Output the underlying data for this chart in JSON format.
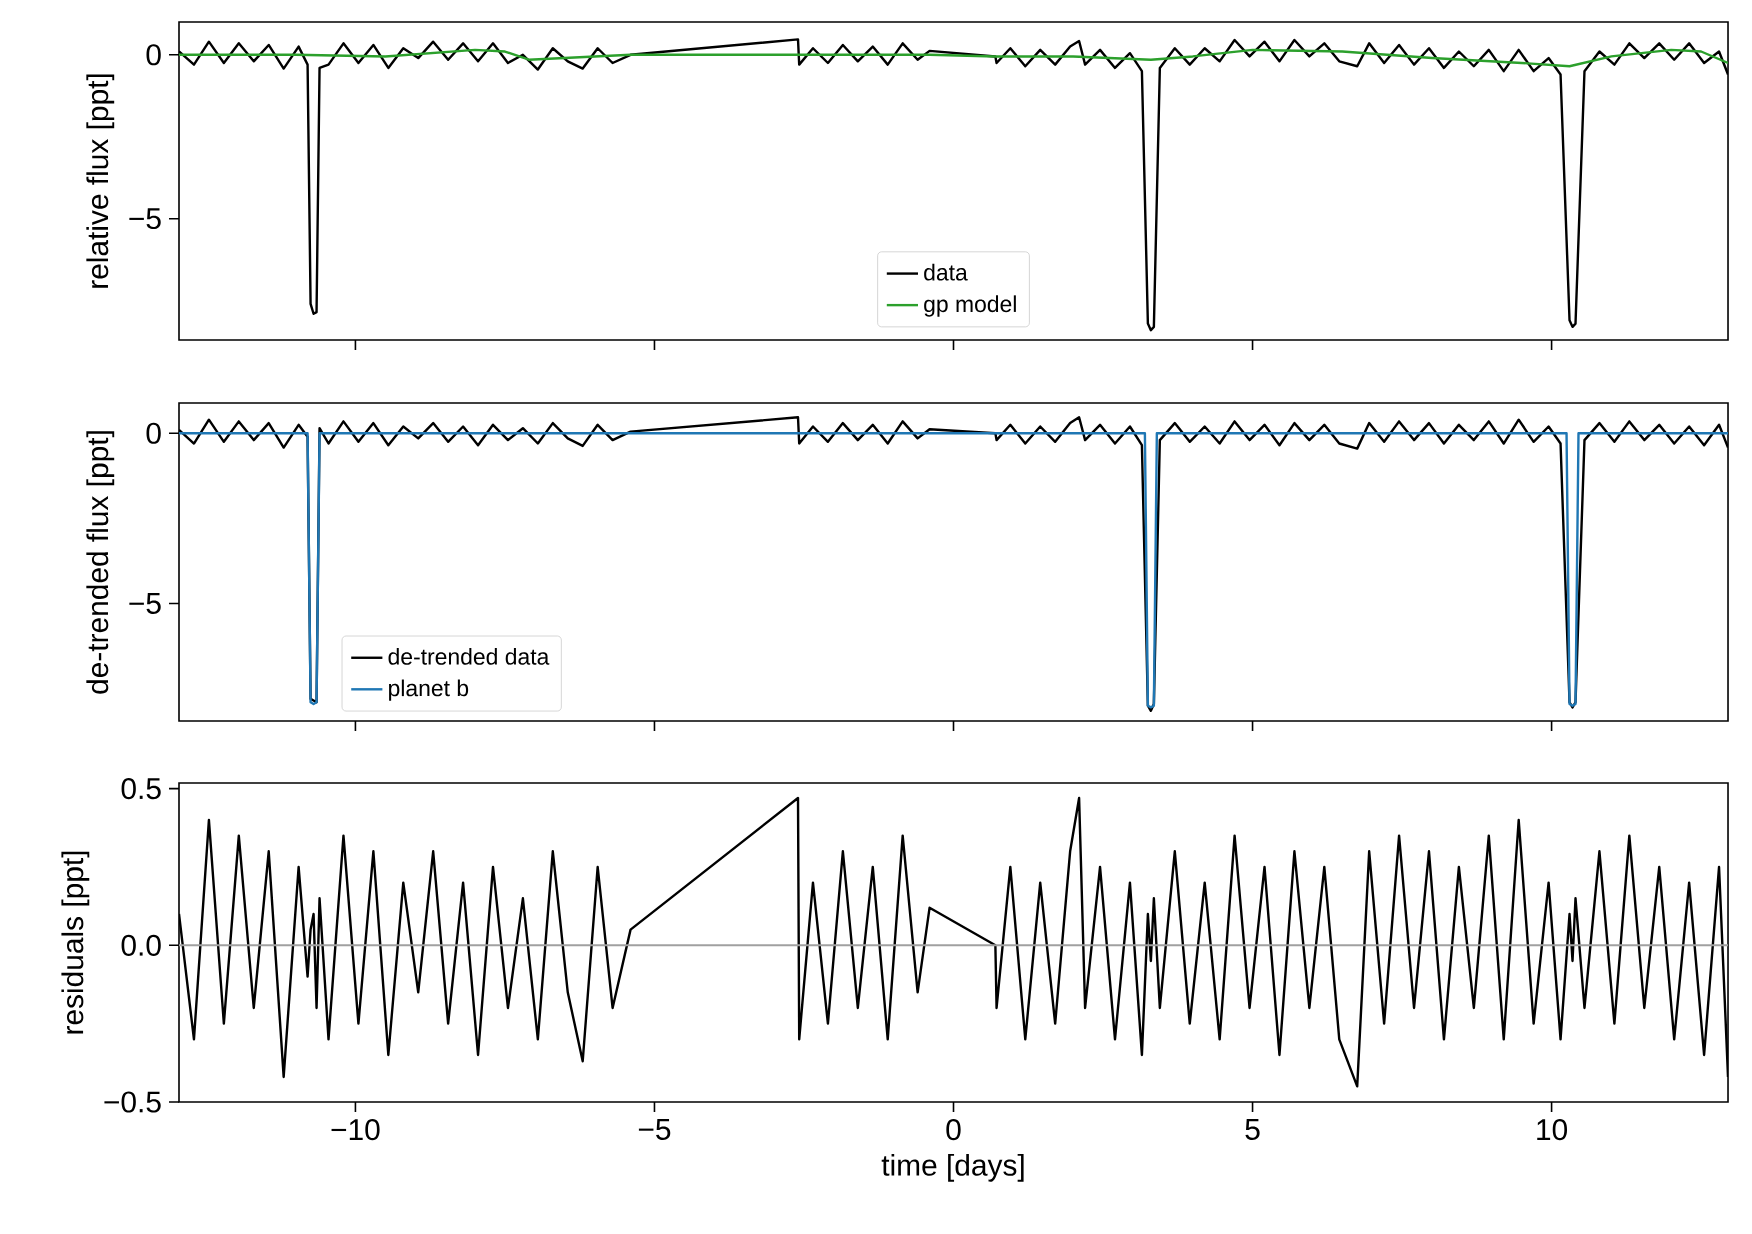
{
  "chart_data": [
    {
      "type": "line",
      "ylabel": "relative flux [ppt]",
      "xlim": [
        -12.95,
        12.95
      ],
      "ylim": [
        -8.7,
        1.0
      ],
      "xticks": [
        {
          "value": -10,
          "label": null
        },
        {
          "value": -5,
          "label": null
        },
        {
          "value": 0,
          "label": null
        },
        {
          "value": 5,
          "label": null
        },
        {
          "value": 10,
          "label": null
        }
      ],
      "yticks": [
        {
          "value": -5,
          "label": "−5"
        },
        {
          "value": 0,
          "label": "0"
        }
      ],
      "tick_labels": "y",
      "legend": "bottom",
      "series": [
        {
          "name": "data",
          "color": "#000000",
          "x": [
            -12.95,
            -12.7,
            -12.45,
            -12.2,
            -11.95,
            -11.7,
            -11.45,
            -11.2,
            -10.95,
            -10.8,
            -10.75,
            -10.7,
            -10.65,
            -10.6,
            -10.45,
            -10.2,
            -9.95,
            -9.7,
            -9.45,
            -9.2,
            -8.95,
            -8.7,
            -8.45,
            -8.2,
            -7.95,
            -7.7,
            -7.45,
            -7.2,
            -6.95,
            -6.7,
            -6.45,
            -6.2,
            -5.95,
            -5.7,
            -5.4,
            -2.6,
            -2.58,
            -2.35,
            -2.1,
            -1.85,
            -1.6,
            -1.35,
            -1.1,
            -0.85,
            -0.6,
            -0.4,
            0.7,
            0.72,
            0.95,
            1.2,
            1.45,
            1.7,
            1.95,
            2.1,
            2.2,
            2.45,
            2.7,
            2.95,
            3.15,
            3.25,
            3.3,
            3.35,
            3.45,
            3.7,
            3.95,
            4.2,
            4.45,
            4.7,
            4.95,
            5.2,
            5.45,
            5.7,
            5.95,
            6.2,
            6.45,
            6.75,
            6.95,
            7.2,
            7.45,
            7.7,
            7.95,
            8.2,
            8.45,
            8.7,
            8.95,
            9.2,
            9.45,
            9.7,
            9.95,
            10.15,
            10.3,
            10.35,
            10.4,
            10.55,
            10.8,
            11.05,
            11.3,
            11.55,
            11.8,
            12.05,
            12.3,
            12.55,
            12.8,
            12.95
          ],
          "values": [
            0.1,
            -0.3,
            0.4,
            -0.25,
            0.35,
            -0.2,
            0.3,
            -0.42,
            0.25,
            -0.3,
            -7.6,
            -7.9,
            -7.85,
            -0.4,
            -0.3,
            0.35,
            -0.25,
            0.3,
            -0.4,
            0.2,
            -0.1,
            0.4,
            -0.15,
            0.35,
            -0.2,
            0.35,
            -0.25,
            0.0,
            -0.45,
            0.2,
            -0.2,
            -0.42,
            0.2,
            -0.25,
            0.0,
            0.47,
            -0.3,
            0.2,
            -0.25,
            0.3,
            -0.2,
            0.25,
            -0.3,
            0.35,
            -0.15,
            0.12,
            -0.05,
            -0.25,
            0.2,
            -0.35,
            0.15,
            -0.3,
            0.25,
            0.42,
            -0.3,
            0.15,
            -0.4,
            0.05,
            -0.5,
            -8.2,
            -8.4,
            -8.3,
            -0.4,
            0.2,
            -0.3,
            0.2,
            -0.2,
            0.45,
            -0.05,
            0.4,
            -0.2,
            0.45,
            -0.05,
            0.35,
            -0.2,
            -0.35,
            0.35,
            -0.25,
            0.3,
            -0.3,
            0.2,
            -0.4,
            0.1,
            -0.35,
            0.15,
            -0.5,
            0.15,
            -0.5,
            -0.1,
            -0.6,
            -8.1,
            -8.3,
            -8.2,
            -0.5,
            0.1,
            -0.3,
            0.35,
            -0.1,
            0.35,
            -0.15,
            0.35,
            -0.25,
            0.1,
            -0.6
          ]
        },
        {
          "name": "gp model",
          "color": "#2ca02c",
          "x": [
            -12.95,
            -11,
            -9.5,
            -8,
            -7.5,
            -7.1,
            -6,
            -5.4,
            -2.6,
            -0.4,
            0.7,
            2,
            3.3,
            4,
            5,
            6.5,
            8,
            9.5,
            10.3,
            11,
            12,
            12.5,
            12.95
          ],
          "values": [
            0.0,
            0.0,
            -0.05,
            0.15,
            0.1,
            -0.15,
            -0.05,
            0.0,
            0.0,
            0.0,
            -0.05,
            -0.05,
            -0.15,
            -0.05,
            0.15,
            0.1,
            -0.1,
            -0.25,
            -0.35,
            -0.05,
            0.15,
            0.1,
            -0.25
          ]
        }
      ]
    },
    {
      "type": "line",
      "ylabel": "de-trended flux [ppt]",
      "xlim": [
        -12.95,
        12.95
      ],
      "ylim": [
        -8.45,
        0.89
      ],
      "xticks": [
        {
          "value": -10,
          "label": null
        },
        {
          "value": -5,
          "label": null
        },
        {
          "value": 0,
          "label": null
        },
        {
          "value": 5,
          "label": null
        },
        {
          "value": 10,
          "label": null
        }
      ],
      "yticks": [
        {
          "value": -5,
          "label": "−5"
        },
        {
          "value": 0,
          "label": "0"
        }
      ],
      "tick_labels": "y",
      "legend": "bottom left",
      "series": [
        {
          "name": "de-trended data",
          "color": "#000000",
          "x": [
            -12.95,
            -12.7,
            -12.45,
            -12.2,
            -11.95,
            -11.7,
            -11.45,
            -11.2,
            -10.95,
            -10.8,
            -10.75,
            -10.7,
            -10.65,
            -10.6,
            -10.45,
            -10.2,
            -9.95,
            -9.7,
            -9.45,
            -9.2,
            -8.95,
            -8.7,
            -8.45,
            -8.2,
            -7.95,
            -7.7,
            -7.45,
            -7.2,
            -6.95,
            -6.7,
            -6.45,
            -6.2,
            -5.95,
            -5.7,
            -5.4,
            -2.6,
            -2.58,
            -2.35,
            -2.1,
            -1.85,
            -1.6,
            -1.35,
            -1.1,
            -0.85,
            -0.6,
            -0.4,
            0.7,
            0.72,
            0.95,
            1.2,
            1.45,
            1.7,
            1.95,
            2.1,
            2.2,
            2.45,
            2.7,
            2.95,
            3.15,
            3.25,
            3.3,
            3.35,
            3.45,
            3.7,
            3.95,
            4.2,
            4.45,
            4.7,
            4.95,
            5.2,
            5.45,
            5.7,
            5.95,
            6.2,
            6.45,
            6.75,
            6.95,
            7.2,
            7.45,
            7.7,
            7.95,
            8.2,
            8.45,
            8.7,
            8.95,
            9.2,
            9.45,
            9.7,
            9.95,
            10.15,
            10.3,
            10.35,
            10.4,
            10.55,
            10.8,
            11.05,
            11.3,
            11.55,
            11.8,
            12.05,
            12.3,
            12.55,
            12.8,
            12.95
          ],
          "values": [
            0.1,
            -0.3,
            0.4,
            -0.25,
            0.35,
            -0.2,
            0.3,
            -0.42,
            0.25,
            -0.1,
            -7.8,
            -7.85,
            -7.9,
            0.15,
            -0.3,
            0.35,
            -0.25,
            0.3,
            -0.35,
            0.2,
            -0.15,
            0.3,
            -0.25,
            0.2,
            -0.35,
            0.25,
            -0.2,
            0.15,
            -0.3,
            0.3,
            -0.15,
            -0.37,
            0.25,
            -0.2,
            0.05,
            0.47,
            -0.3,
            0.2,
            -0.25,
            0.3,
            -0.2,
            0.25,
            -0.3,
            0.35,
            -0.15,
            0.12,
            0.0,
            -0.2,
            0.25,
            -0.3,
            0.2,
            -0.25,
            0.3,
            0.47,
            -0.2,
            0.25,
            -0.3,
            0.2,
            -0.35,
            -8.0,
            -8.15,
            -7.95,
            -0.2,
            0.3,
            -0.25,
            0.2,
            -0.3,
            0.35,
            -0.2,
            0.25,
            -0.35,
            0.3,
            -0.2,
            0.25,
            -0.3,
            -0.45,
            0.3,
            -0.25,
            0.35,
            -0.2,
            0.3,
            -0.3,
            0.25,
            -0.2,
            0.35,
            -0.3,
            0.4,
            -0.25,
            0.2,
            -0.3,
            -7.9,
            -8.05,
            -7.9,
            -0.2,
            0.3,
            -0.25,
            0.35,
            -0.2,
            0.25,
            -0.3,
            0.2,
            -0.35,
            0.25,
            -0.42
          ]
        },
        {
          "name": "planet b",
          "color": "#1f77b4",
          "x": [
            -12.95,
            -10.8,
            -10.75,
            -10.7,
            -10.65,
            -10.6,
            3.2,
            3.25,
            3.3,
            3.35,
            3.4,
            10.25,
            10.3,
            10.35,
            10.4,
            10.45,
            12.95
          ],
          "values": [
            0,
            0,
            -7.9,
            -7.95,
            -7.9,
            0,
            0,
            -8.0,
            -8.05,
            -8.0,
            0,
            0,
            -7.95,
            -8.0,
            -7.95,
            0,
            0
          ]
        }
      ]
    },
    {
      "type": "line",
      "ylabel": "residuals [ppt]",
      "xlabel": "time [days]",
      "xlim": [
        -12.95,
        12.95
      ],
      "ylim": [
        -0.5,
        0.518
      ],
      "xticks": [
        {
          "value": -10,
          "label": "−10"
        },
        {
          "value": -5,
          "label": "−5"
        },
        {
          "value": 0,
          "label": "0"
        },
        {
          "value": 5,
          "label": "5"
        },
        {
          "value": 10,
          "label": "10"
        }
      ],
      "yticks": [
        {
          "value": -0.5,
          "label": "−0.5"
        },
        {
          "value": 0,
          "label": "0.0"
        },
        {
          "value": 0.5,
          "label": "0.5"
        }
      ],
      "ref_lines": [
        {
          "axis": "y",
          "value": 0,
          "color": "#a0a0a0"
        }
      ],
      "series": [
        {
          "color": "#000000",
          "x": [
            -12.95,
            -12.7,
            -12.45,
            -12.2,
            -11.95,
            -11.7,
            -11.45,
            -11.2,
            -10.95,
            -10.8,
            -10.75,
            -10.7,
            -10.65,
            -10.6,
            -10.45,
            -10.2,
            -9.95,
            -9.7,
            -9.45,
            -9.2,
            -8.95,
            -8.7,
            -8.45,
            -8.2,
            -7.95,
            -7.7,
            -7.45,
            -7.2,
            -6.95,
            -6.7,
            -6.45,
            -6.2,
            -5.95,
            -5.7,
            -5.4,
            -2.6,
            -2.58,
            -2.35,
            -2.1,
            -1.85,
            -1.6,
            -1.35,
            -1.1,
            -0.85,
            -0.6,
            -0.4,
            0.7,
            0.72,
            0.95,
            1.2,
            1.45,
            1.7,
            1.95,
            2.1,
            2.2,
            2.45,
            2.7,
            2.95,
            3.15,
            3.25,
            3.3,
            3.35,
            3.45,
            3.7,
            3.95,
            4.2,
            4.45,
            4.7,
            4.95,
            5.2,
            5.45,
            5.7,
            5.95,
            6.2,
            6.45,
            6.75,
            6.95,
            7.2,
            7.45,
            7.7,
            7.95,
            8.2,
            8.45,
            8.7,
            8.95,
            9.2,
            9.45,
            9.7,
            9.95,
            10.15,
            10.3,
            10.35,
            10.4,
            10.55,
            10.8,
            11.05,
            11.3,
            11.55,
            11.8,
            12.05,
            12.3,
            12.55,
            12.8,
            12.95
          ],
          "values": [
            0.1,
            -0.3,
            0.4,
            -0.25,
            0.35,
            -0.2,
            0.3,
            -0.42,
            0.25,
            -0.1,
            0.05,
            0.1,
            -0.2,
            0.15,
            -0.3,
            0.35,
            -0.25,
            0.3,
            -0.35,
            0.2,
            -0.15,
            0.3,
            -0.25,
            0.2,
            -0.35,
            0.25,
            -0.2,
            0.15,
            -0.3,
            0.3,
            -0.15,
            -0.37,
            0.25,
            -0.2,
            0.05,
            0.47,
            -0.3,
            0.2,
            -0.25,
            0.3,
            -0.2,
            0.25,
            -0.3,
            0.35,
            -0.15,
            0.12,
            0.0,
            -0.2,
            0.25,
            -0.3,
            0.2,
            -0.25,
            0.3,
            0.47,
            -0.2,
            0.25,
            -0.3,
            0.2,
            -0.35,
            0.1,
            -0.05,
            0.15,
            -0.2,
            0.3,
            -0.25,
            0.2,
            -0.3,
            0.35,
            -0.2,
            0.25,
            -0.35,
            0.3,
            -0.2,
            0.25,
            -0.3,
            -0.45,
            0.3,
            -0.25,
            0.35,
            -0.2,
            0.3,
            -0.3,
            0.25,
            -0.2,
            0.35,
            -0.3,
            0.4,
            -0.25,
            0.2,
            -0.3,
            0.1,
            -0.05,
            0.15,
            -0.2,
            0.3,
            -0.25,
            0.35,
            -0.2,
            0.25,
            -0.3,
            0.2,
            -0.35,
            0.25,
            -0.42
          ]
        }
      ]
    }
  ]
}
